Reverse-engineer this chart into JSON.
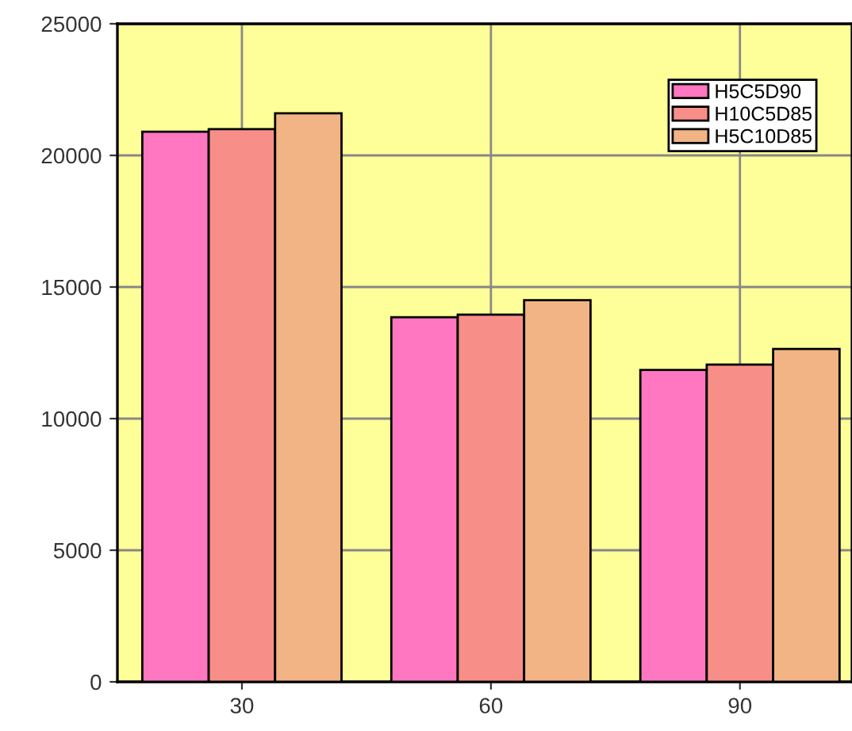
{
  "chart_data": {
    "type": "bar",
    "categories": [
      "30",
      "60",
      "90"
    ],
    "series": [
      {
        "name": "H5C5D90",
        "color": "#ff77c0",
        "values": [
          20900,
          13850,
          11850
        ]
      },
      {
        "name": "H10C5D85",
        "color": "#f78f88",
        "values": [
          21000,
          13950,
          12050
        ]
      },
      {
        "name": "H5C10D85",
        "color": "#f2b484",
        "values": [
          21600,
          14500,
          12650
        ]
      }
    ],
    "ylim": [
      0,
      25000
    ],
    "yticks": [
      0,
      5000,
      10000,
      15000,
      20000,
      25000
    ],
    "grid": true,
    "legend": "top right"
  }
}
